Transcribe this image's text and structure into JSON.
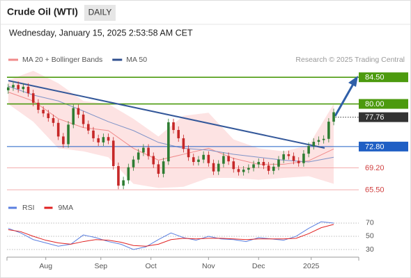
{
  "chart_data": {
    "type": "candlestick",
    "title": "Crude Oil (WTI)",
    "timeframe": "DAILY",
    "subtitle": "Wednesday, January 15, 2025 2:53:58 AM CET",
    "legend": [
      {
        "name": "MA 20 + Bollinger Bands",
        "color": "#f08a8a"
      },
      {
        "name": "MA 50",
        "color": "#2f4f8f"
      }
    ],
    "source": "Research © 2025 Trading Central",
    "x": [
      0,
      2,
      4,
      6,
      8,
      10,
      12,
      14,
      16,
      18,
      20,
      22,
      24,
      26,
      28,
      30,
      32,
      34,
      36,
      38,
      40,
      42,
      44,
      46,
      48,
      50,
      52,
      54,
      56,
      58,
      60,
      62,
      64,
      66,
      68,
      70,
      72,
      74,
      76,
      78,
      80,
      82,
      84,
      86,
      88,
      90,
      92,
      94,
      96,
      98,
      100,
      102,
      104,
      106,
      108,
      110,
      112,
      114,
      116,
      118,
      120,
      122,
      124,
      126,
      128,
      130
    ],
    "open": [
      82.3,
      82.8,
      83.2,
      82.5,
      82.9,
      81.8,
      80.2,
      79.0,
      78.4,
      77.6,
      76.8,
      74.5,
      73.2,
      76.5,
      79.3,
      78.2,
      76.6,
      75.5,
      74.2,
      73.5,
      74.4,
      73.8,
      69.5,
      66.2,
      67.1,
      69.3,
      70.6,
      71.8,
      72.6,
      71.2,
      69.8,
      68.2,
      70.3,
      76.9,
      75.6,
      74.2,
      72.4,
      71.0,
      70.2,
      70.6,
      71.4,
      70.0,
      68.6,
      69.9,
      71.2,
      70.3,
      69.0,
      68.5,
      68.9,
      69.2,
      69.8,
      70.2,
      69.6,
      68.7,
      69.4,
      70.6,
      71.5,
      71.2,
      70.4,
      70.0,
      71.6,
      72.9,
      73.6,
      73.9,
      74.1,
      77.0
    ],
    "high": [
      83.4,
      83.8,
      83.8,
      83.5,
      83.5,
      82.4,
      80.8,
      79.6,
      79.0,
      78.2,
      77.4,
      75.1,
      77.1,
      79.9,
      79.9,
      78.8,
      77.2,
      76.1,
      74.8,
      75.0,
      75.0,
      74.4,
      70.1,
      67.7,
      69.9,
      71.2,
      72.4,
      73.2,
      73.2,
      71.8,
      70.4,
      70.9,
      77.5,
      77.5,
      76.2,
      74.8,
      73.0,
      71.6,
      71.2,
      72.0,
      72.0,
      70.6,
      70.5,
      71.8,
      71.8,
      70.9,
      69.6,
      69.5,
      69.8,
      70.4,
      70.8,
      70.8,
      70.2,
      70.0,
      71.2,
      72.1,
      72.1,
      71.8,
      71.0,
      72.2,
      73.5,
      74.2,
      74.5,
      74.7,
      77.6,
      79.2
    ],
    "low": [
      81.7,
      82.2,
      81.9,
      81.9,
      81.2,
      79.6,
      78.4,
      77.8,
      77.0,
      76.2,
      73.9,
      72.6,
      72.6,
      75.9,
      77.6,
      76.0,
      74.9,
      73.6,
      72.9,
      72.9,
      73.2,
      68.9,
      65.6,
      65.6,
      66.5,
      68.7,
      70.0,
      71.2,
      70.6,
      69.2,
      67.6,
      67.6,
      69.7,
      75.0,
      73.6,
      71.8,
      70.4,
      69.6,
      69.6,
      70.0,
      69.4,
      68.0,
      68.0,
      69.3,
      69.7,
      68.4,
      67.9,
      67.9,
      68.3,
      68.6,
      69.2,
      69.0,
      68.1,
      68.1,
      68.8,
      70.0,
      70.6,
      69.8,
      69.4,
      69.4,
      71.0,
      72.3,
      73.0,
      73.3,
      73.5,
      76.4
    ],
    "close": [
      82.8,
      83.2,
      82.5,
      82.9,
      81.8,
      80.2,
      79.0,
      78.4,
      77.6,
      76.8,
      74.5,
      73.2,
      76.5,
      79.3,
      78.2,
      76.6,
      75.5,
      74.2,
      73.5,
      74.4,
      73.8,
      69.5,
      66.2,
      67.1,
      69.3,
      70.6,
      71.8,
      72.6,
      71.2,
      69.8,
      68.2,
      70.3,
      76.9,
      75.6,
      74.2,
      72.4,
      71.0,
      70.2,
      70.6,
      71.4,
      70.0,
      68.6,
      69.9,
      71.2,
      70.3,
      69.0,
      68.5,
      68.9,
      69.2,
      69.8,
      70.2,
      69.6,
      68.7,
      69.4,
      70.6,
      71.5,
      71.2,
      70.4,
      70.0,
      71.6,
      72.9,
      73.6,
      73.9,
      74.1,
      77.0,
      78.6
    ],
    "up_color": "#2e7d32",
    "down_color": "#c62828",
    "ind_x": [
      0,
      10,
      20,
      30,
      40,
      50,
      60,
      70,
      80,
      90,
      100,
      110,
      120,
      130
    ],
    "ma20": [
      82.0,
      80.5,
      77.5,
      76.0,
      75.5,
      72.5,
      70.5,
      71.5,
      72.5,
      70.8,
      69.8,
      69.8,
      70.4,
      72.4
    ],
    "bb_upper": [
      84.0,
      85.6,
      83.5,
      80.5,
      80.0,
      77.5,
      74.5,
      78.0,
      78.5,
      74.0,
      72.5,
      72.0,
      73.0,
      80.0
    ],
    "bb_lower": [
      80.0,
      77.0,
      72.5,
      72.0,
      71.0,
      66.5,
      65.8,
      66.0,
      67.5,
      67.5,
      67.2,
      67.5,
      67.8,
      66.5
    ],
    "ma50": [
      83.0,
      81.5,
      80.5,
      78.8,
      77.0,
      75.5,
      73.5,
      72.5,
      72.2,
      71.5,
      71.0,
      70.5,
      70.2,
      71.0
    ],
    "xlim": [
      -0.5,
      140
    ],
    "ylim": [
      64.1,
      86.4
    ],
    "xticks": [
      {
        "value": 15,
        "label": "Aug"
      },
      {
        "value": 37,
        "label": "Sep"
      },
      {
        "value": 57,
        "label": "Oct"
      },
      {
        "value": 80,
        "label": "Nov"
      },
      {
        "value": 100,
        "label": "Dec"
      },
      {
        "value": 121,
        "label": "2025"
      }
    ],
    "levels": [
      {
        "value": 84.5,
        "label": "84.50",
        "color": "#4c9a0e",
        "style": "box"
      },
      {
        "value": 80,
        "label": "80.00",
        "color": "#4c9a0e",
        "style": "box"
      },
      {
        "value": 77.76,
        "label": "77.76",
        "color": "#333333",
        "style": "last"
      },
      {
        "value": 72.8,
        "label": "72.80",
        "color": "#1f5fc4",
        "style": "box"
      },
      {
        "value": 69.2,
        "label": "69.20",
        "color": "#d04040",
        "style": "text"
      },
      {
        "value": 65.5,
        "label": "65.50",
        "color": "#d04040",
        "style": "text"
      }
    ],
    "rsi": {
      "legend": [
        {
          "name": "RSI",
          "color": "#5a7fe0"
        },
        {
          "name": "9MA",
          "color": "#e02020"
        }
      ],
      "x": [
        0,
        5,
        10,
        15,
        20,
        25,
        30,
        35,
        40,
        45,
        50,
        55,
        60,
        65,
        70,
        75,
        80,
        85,
        90,
        95,
        100,
        105,
        110,
        115,
        120,
        125,
        130
      ],
      "rsi": [
        62,
        55,
        45,
        40,
        35,
        38,
        52,
        48,
        42,
        38,
        30,
        34,
        45,
        55,
        48,
        44,
        50,
        46,
        45,
        42,
        48,
        46,
        44,
        50,
        62,
        72,
        70
      ],
      "ma9": [
        60,
        57,
        50,
        44,
        40,
        38,
        42,
        45,
        44,
        41,
        36,
        35,
        38,
        45,
        47,
        46,
        47,
        47,
        46,
        45,
        46,
        46,
        46,
        47,
        54,
        63,
        68
      ],
      "ylim": [
        20.5,
        86.8
      ],
      "yticks": [
        70,
        50,
        30
      ]
    }
  }
}
